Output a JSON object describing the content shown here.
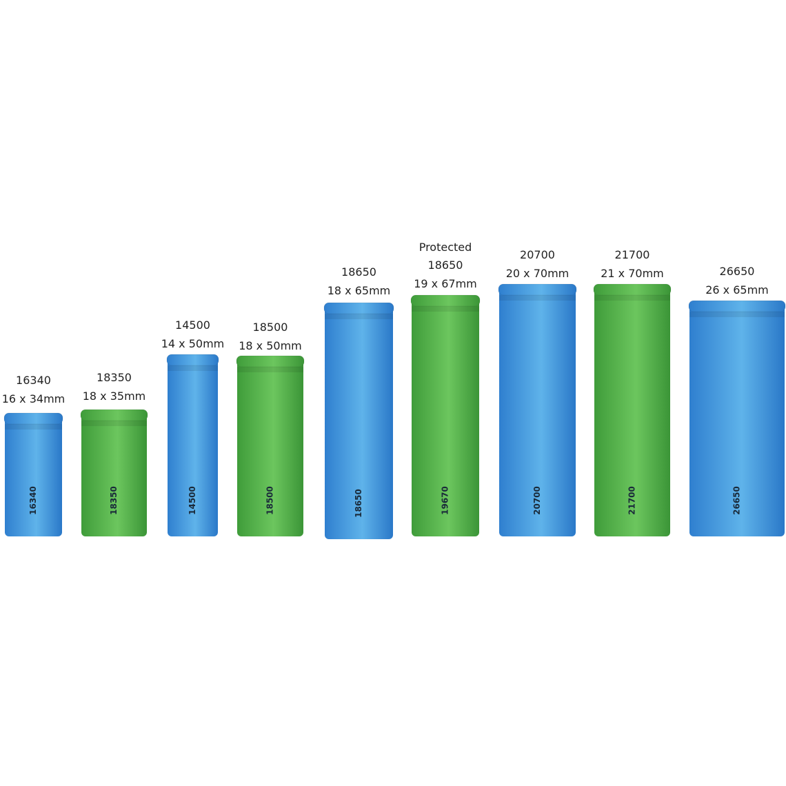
{
  "batteries": [
    {
      "name": "16340",
      "size": "16 x 34mm",
      "body": "16340"
    },
    {
      "name": "18350",
      "size": "18 x 35mm",
      "body": "18350"
    },
    {
      "name": "14500",
      "size": "14 x 50mm",
      "body": "14500"
    },
    {
      "name": "18500",
      "size": "18 x 50mm",
      "body": "18500"
    },
    {
      "name": "18650",
      "size": "18 x 65mm",
      "body": "18650"
    },
    {
      "prefix": "Protected",
      "name": "18650",
      "size": "19 x 67mm",
      "body": "19670"
    },
    {
      "name": "20700",
      "size": "20 x 70mm",
      "body": "20700"
    },
    {
      "name": "21700",
      "size": "21 x 70mm",
      "body": "21700"
    },
    {
      "name": "26650",
      "size": "26 x 65mm",
      "body": "26650"
    }
  ]
}
